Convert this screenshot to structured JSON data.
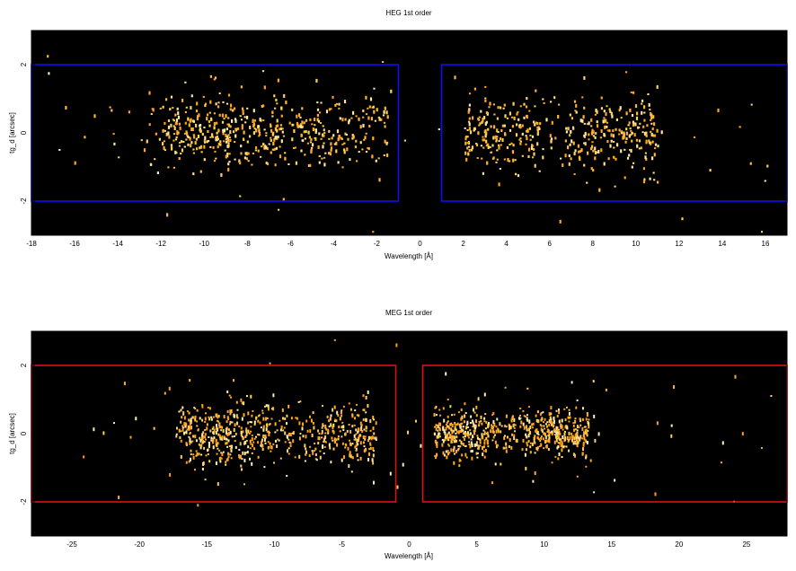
{
  "chart_data": [
    {
      "type": "heatmap",
      "id": "heg",
      "title": "HEG 1st order",
      "xlabel": "Wavelength [Å]",
      "ylabel": "tg_d [arcsec]",
      "xlim": [
        -18,
        17
      ],
      "ylim": [
        -3,
        3
      ],
      "xticks": [
        -18,
        -16,
        -14,
        -12,
        -10,
        -8,
        -6,
        -4,
        -2,
        0,
        2,
        4,
        6,
        8,
        10,
        12,
        14,
        16
      ],
      "yticks": [
        -2,
        0,
        2
      ],
      "background_color": "#000000",
      "event_colors": [
        "#ffb82e",
        "#ffa51f",
        "#ffd35a",
        "#ffe7a0"
      ],
      "regions": [
        {
          "xmin": -18,
          "xmax": -1,
          "ymin": -2,
          "ymax": 2,
          "color": "#1010ee"
        },
        {
          "xmin": 1,
          "xmax": 17,
          "ymin": -2,
          "ymax": 2,
          "color": "#1010ee"
        }
      ],
      "clusters": [
        {
          "xmin": -13,
          "xmax": -1.5,
          "center_x": -2.5,
          "n": 520,
          "sigma_y": 0.55
        },
        {
          "xmin": 1.7,
          "xmax": 11.5,
          "center_x": 6.5,
          "n": 420,
          "sigma_y": 0.55
        },
        {
          "xmin": -17.5,
          "xmax": 16.5,
          "center_x": 0,
          "n": 60,
          "sigma_y": 1.4
        }
      ],
      "grid": false
    },
    {
      "type": "heatmap",
      "id": "meg",
      "title": "MEG 1st order",
      "xlabel": "Wavelength [Å]",
      "ylabel": "tg_d [arcsec]",
      "xlim": [
        -28,
        28
      ],
      "ylim": [
        -3,
        3
      ],
      "xticks": [
        -25,
        -20,
        -15,
        -10,
        -5,
        0,
        5,
        10,
        15,
        20,
        25
      ],
      "yticks": [
        -2,
        0,
        2
      ],
      "background_color": "#000000",
      "event_colors": [
        "#ff9f1a",
        "#ffb02a",
        "#ffd060",
        "#fff0b0"
      ],
      "regions": [
        {
          "xmin": -28,
          "xmax": -1,
          "ymin": -2,
          "ymax": 2,
          "color": "#dd1111"
        },
        {
          "xmin": 1,
          "xmax": 28,
          "ymin": -2,
          "ymax": 2,
          "color": "#dd1111"
        }
      ],
      "clusters": [
        {
          "xmin": -18,
          "xmax": -2.5,
          "center_x": -8,
          "n": 620,
          "sigma_y": 0.45
        },
        {
          "xmin": 1.8,
          "xmax": 14,
          "center_x": 7,
          "n": 620,
          "sigma_y": 0.35
        },
        {
          "xmin": -27,
          "xmax": 27,
          "center_x": 0,
          "n": 70,
          "sigma_y": 1.3
        }
      ],
      "grid": false
    }
  ]
}
